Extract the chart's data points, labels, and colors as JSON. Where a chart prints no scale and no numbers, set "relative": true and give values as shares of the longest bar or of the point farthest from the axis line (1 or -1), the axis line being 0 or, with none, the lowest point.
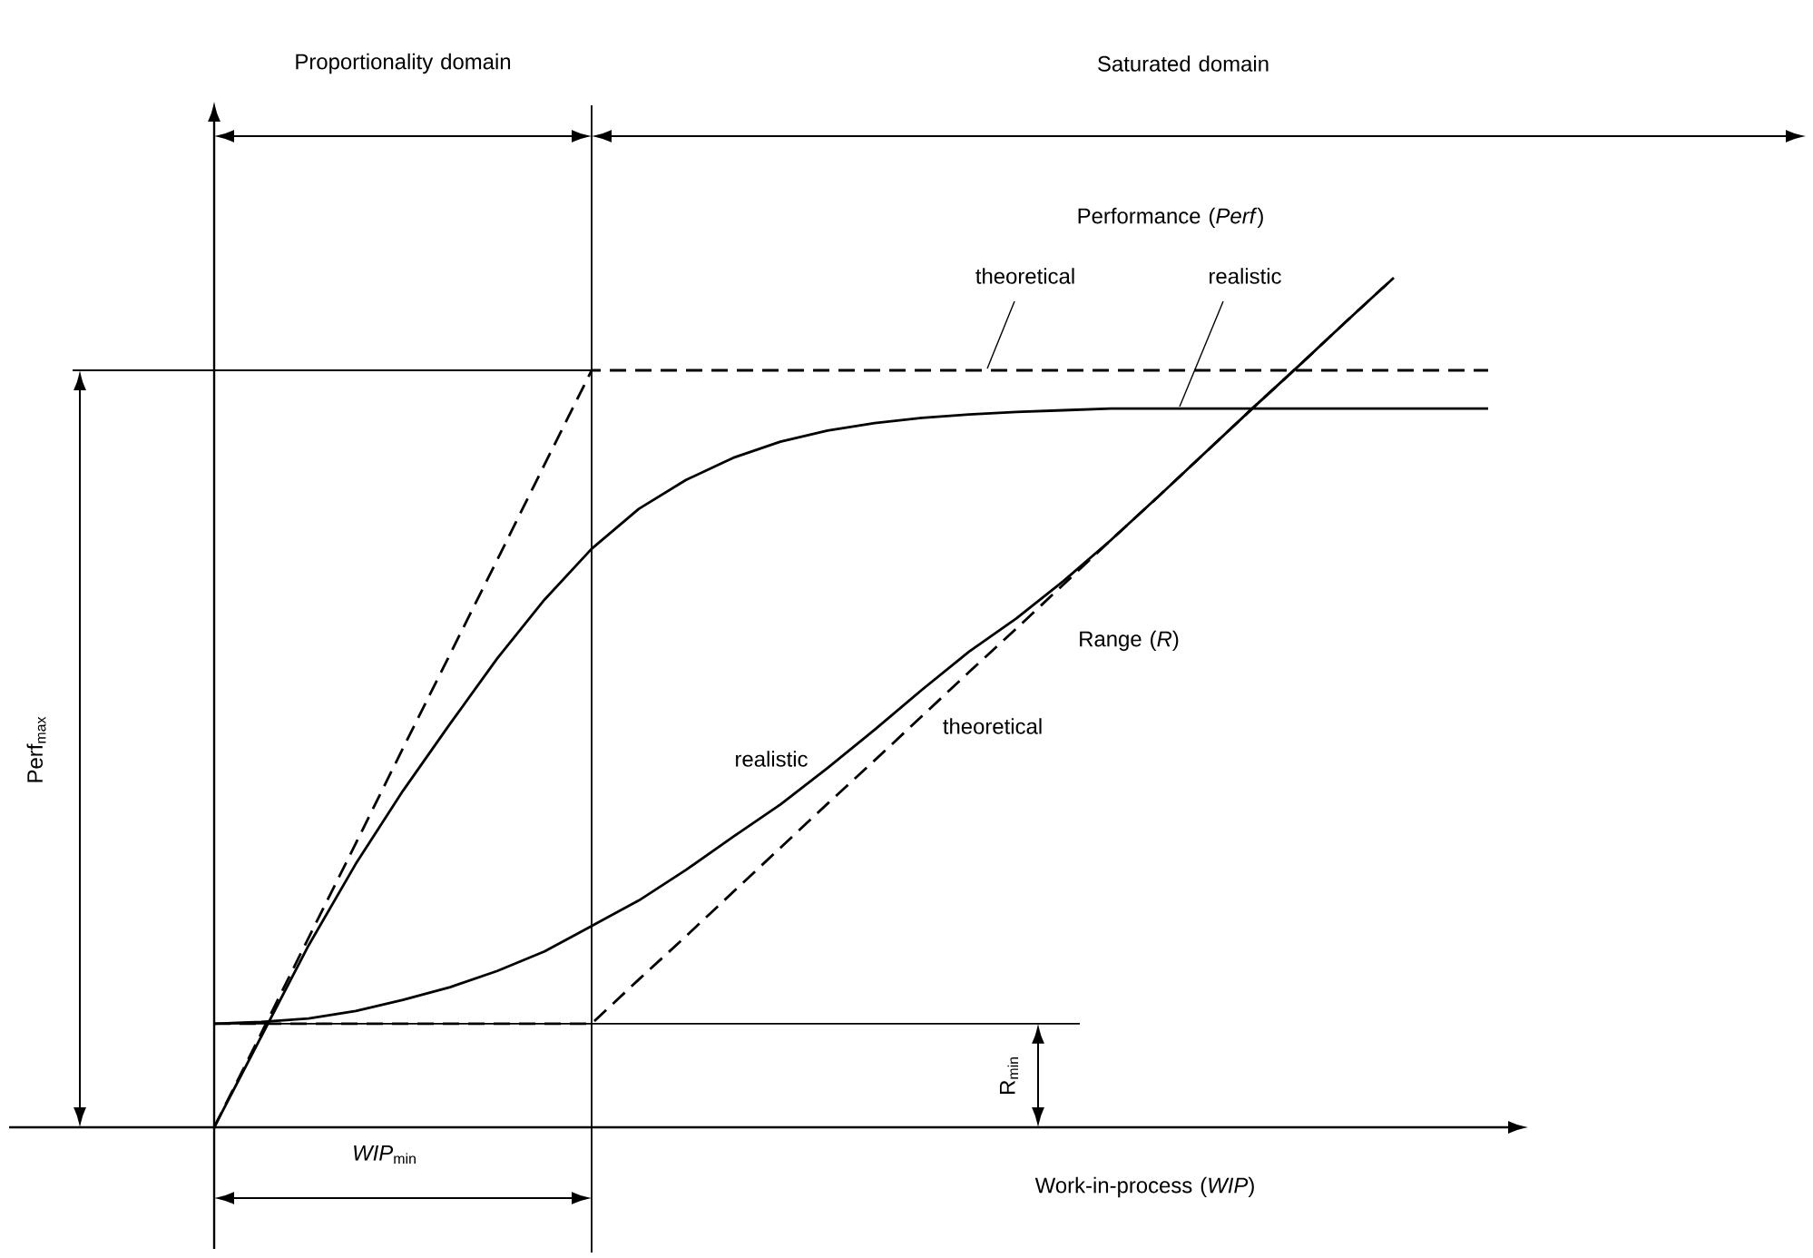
{
  "chart_data": {
    "type": "line",
    "relative": true,
    "categories": [
      null,
      null,
      null,
      null,
      null,
      null,
      null,
      null,
      null,
      null,
      null,
      null,
      null,
      null,
      null,
      null,
      null,
      null,
      null,
      null,
      null,
      null,
      null,
      null,
      null,
      null,
      null,
      null
    ],
    "series": [
      {
        "name": "theoretical",
        "color": "#000000",
        "line_style": "dashed",
        "values": [
          0,
          0.111,
          0.223,
          0.334,
          0.446,
          0.557,
          0.668,
          0.78,
          0.891,
          0.891,
          0.891,
          0.891,
          0.891,
          0.891,
          0.891,
          0.891,
          0.891,
          0.891,
          0.891,
          0.891,
          0.891,
          0.891,
          0.891,
          0.891,
          0.891,
          0.891,
          0.891,
          0.891
        ]
      },
      {
        "name": "realistic",
        "color": "#000000",
        "line_style": "solid",
        "values": [
          0,
          0.107,
          0.214,
          0.31,
          0.396,
          0.475,
          0.552,
          0.621,
          0.681,
          0.728,
          0.762,
          0.788,
          0.807,
          0.82,
          0.829,
          0.835,
          0.839,
          0.842,
          0.844,
          0.846,
          0.846,
          0.846,
          0.846,
          0.846,
          0.846,
          0.846,
          0.846,
          0.846
        ]
      },
      {
        "name": "theoretical",
        "color": "#000000",
        "line_style": "dashed",
        "values": [
          0.122,
          0.122,
          0.122,
          0.122,
          0.122,
          0.122,
          0.122,
          0.122,
          0.122,
          0.174,
          0.225,
          0.277,
          0.329,
          0.381,
          0.432,
          0.484,
          0.536,
          0.587,
          0.639,
          0.691,
          0.742,
          0.794,
          0.846,
          0.897,
          0.949,
          1.0,
          null,
          null
        ]
      },
      {
        "name": "realistic",
        "color": "#000000",
        "line_style": "solid",
        "values": [
          0.122,
          0.124,
          0.128,
          0.137,
          0.15,
          0.165,
          0.184,
          0.207,
          0.237,
          0.267,
          0.303,
          0.342,
          0.38,
          0.423,
          0.468,
          0.515,
          0.56,
          0.599,
          0.643,
          0.691,
          0.742,
          0.794,
          0.846,
          0.897,
          0.949,
          1.0,
          null,
          null
        ]
      }
    ],
    "ref_lines": [
      {
        "axis": "y",
        "value": 0.891
      },
      {
        "axis": "y",
        "value": 0.122,
        "label": "R$_{min}$"
      }
    ],
    "annotations": [
      "Proportionality domain",
      "Saturated domain",
      "Performance (*Perf*)",
      "Range (*R*)",
      "*WIP*$_{min}$",
      "Work-in-process (*WIP*)",
      "Perf$_{max}$"
    ]
  }
}
